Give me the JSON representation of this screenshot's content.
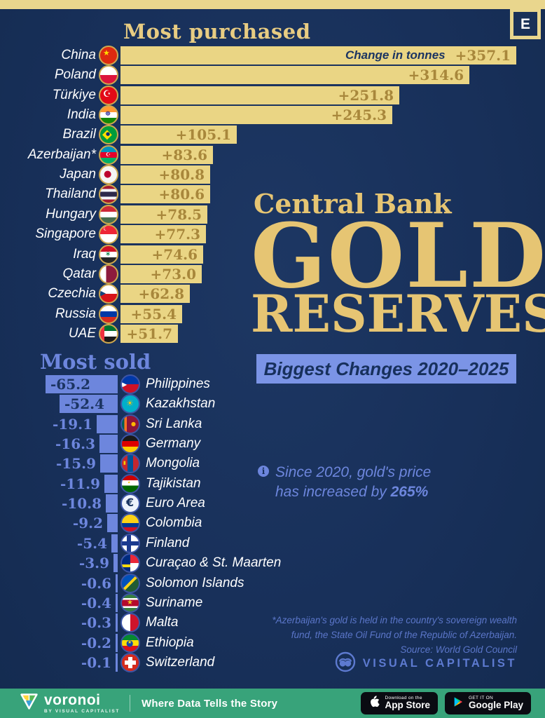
{
  "page": {
    "badge_letter": "E"
  },
  "icons": {
    "info_icon": "i"
  },
  "most_purchased": {
    "title": "Most purchased",
    "axis_note": "Change in tonnes",
    "rows": [
      {
        "country": "China",
        "flag": "china",
        "value": 357.1,
        "label": "+357.1"
      },
      {
        "country": "Poland",
        "flag": "poland",
        "value": 314.6,
        "label": "+314.6"
      },
      {
        "country": "Türkiye",
        "flag": "turkiye",
        "value": 251.8,
        "label": "+251.8"
      },
      {
        "country": "India",
        "flag": "india",
        "value": 245.3,
        "label": "+245.3"
      },
      {
        "country": "Brazil",
        "flag": "brazil",
        "value": 105.1,
        "label": "+105.1"
      },
      {
        "country": "Azerbaijan*",
        "flag": "azerbaijan",
        "value": 83.6,
        "label": "+83.6"
      },
      {
        "country": "Japan",
        "flag": "japan",
        "value": 80.8,
        "label": "+80.8"
      },
      {
        "country": "Thailand",
        "flag": "thailand",
        "value": 80.6,
        "label": "+80.6"
      },
      {
        "country": "Hungary",
        "flag": "hungary",
        "value": 78.5,
        "label": "+78.5"
      },
      {
        "country": "Singapore",
        "flag": "singapore",
        "value": 77.3,
        "label": "+77.3"
      },
      {
        "country": "Iraq",
        "flag": "iraq",
        "value": 74.6,
        "label": "+74.6"
      },
      {
        "country": "Qatar",
        "flag": "qatar",
        "value": 73.0,
        "label": "+73.0"
      },
      {
        "country": "Czechia",
        "flag": "czechia",
        "value": 62.8,
        "label": "+62.8"
      },
      {
        "country": "Russia",
        "flag": "russia",
        "value": 55.4,
        "label": "+55.4"
      },
      {
        "country": "UAE",
        "flag": "uae",
        "value": 51.7,
        "label": "+51.7"
      }
    ]
  },
  "most_sold": {
    "title": "Most sold",
    "rows": [
      {
        "country": "Philippines",
        "flag": "philippines",
        "value": 65.2,
        "label": "-65.2"
      },
      {
        "country": "Kazakhstan",
        "flag": "kazakhstan",
        "value": 52.4,
        "label": "-52.4"
      },
      {
        "country": "Sri Lanka",
        "flag": "sri-lanka",
        "value": 19.1,
        "label": "-19.1"
      },
      {
        "country": "Germany",
        "flag": "germany",
        "value": 16.3,
        "label": "-16.3"
      },
      {
        "country": "Mongolia",
        "flag": "mongolia",
        "value": 15.9,
        "label": "-15.9"
      },
      {
        "country": "Tajikistan",
        "flag": "tajikistan",
        "value": 11.9,
        "label": "-11.9"
      },
      {
        "country": "Euro Area",
        "flag": "euro-area",
        "value": 10.8,
        "label": "-10.8"
      },
      {
        "country": "Colombia",
        "flag": "colombia",
        "value": 9.2,
        "label": "-9.2"
      },
      {
        "country": "Finland",
        "flag": "finland",
        "value": 5.4,
        "label": "-5.4"
      },
      {
        "country": "Curaçao & St. Maarten",
        "flag": "curacao-st-maarten",
        "value": 3.9,
        "label": "-3.9"
      },
      {
        "country": "Solomon Islands",
        "flag": "solomon-islands",
        "value": 0.6,
        "label": "-0.6"
      },
      {
        "country": "Suriname",
        "flag": "suriname",
        "value": 0.4,
        "label": "-0.4"
      },
      {
        "country": "Malta",
        "flag": "malta",
        "value": 0.3,
        "label": "-0.3"
      },
      {
        "country": "Ethiopia",
        "flag": "ethiopia",
        "value": 0.2,
        "label": "-0.2"
      },
      {
        "country": "Switzerland",
        "flag": "switzerland",
        "value": 0.1,
        "label": "-0.1"
      }
    ]
  },
  "center": {
    "kicker": "Central Bank",
    "title": "GOLD",
    "title2": "RESERVES",
    "period_badge": "Biggest Changes 2020–2025",
    "note_line1": "Since 2020, gold's price",
    "note_line2": "has increased by ",
    "note_bold": "265%"
  },
  "footnote": {
    "line1": "*Azerbaijan's gold is held in the country's sovereign wealth",
    "line2": "fund, the State Oil Fund of the Republic of Azerbaijan.",
    "source": "Source: World Gold Council"
  },
  "branding": {
    "publisher": "VISUAL CAPITALIST"
  },
  "footer": {
    "brand": "voronoi",
    "brand_sub": "BY VISUAL CAPITALIST",
    "tagline": "Where Data Tells the Story",
    "appstore_line1": "Download on the",
    "appstore_line2": "App Store",
    "googleplay_line1": "GET IT ON",
    "googleplay_line2": "Google Play"
  },
  "colors": {
    "background_navy": "#1a3158",
    "gold_band": "#e9d68d",
    "bar_gold": "#ead584",
    "value_bronze": "#a8873b",
    "title_gold": "#e6c573",
    "accent_blue": "#6d86dd",
    "badge_blue": "#7b94e6",
    "navy_text": "#1b3462",
    "footer_green": "#38a37a",
    "text_white": "#ffffff"
  },
  "chart_data": [
    {
      "type": "bar",
      "title": "Most purchased",
      "orientation": "horizontal",
      "unit": "tonnes",
      "axis_note": "Change in tonnes",
      "categories": [
        "China",
        "Poland",
        "Türkiye",
        "India",
        "Brazil",
        "Azerbaijan",
        "Japan",
        "Thailand",
        "Hungary",
        "Singapore",
        "Iraq",
        "Qatar",
        "Czechia",
        "Russia",
        "UAE"
      ],
      "values": [
        357.1,
        314.6,
        251.8,
        245.3,
        105.1,
        83.6,
        80.8,
        80.6,
        78.5,
        77.3,
        74.6,
        73.0,
        62.8,
        55.4,
        51.7
      ],
      "xlim": [
        0,
        357.1
      ],
      "bar_color": "#ead584",
      "grid": false,
      "legend": false
    },
    {
      "type": "bar",
      "title": "Most sold",
      "orientation": "horizontal",
      "unit": "tonnes",
      "categories": [
        "Philippines",
        "Kazakhstan",
        "Sri Lanka",
        "Germany",
        "Mongolia",
        "Tajikistan",
        "Euro Area",
        "Colombia",
        "Finland",
        "Curaçao & St. Maarten",
        "Solomon Islands",
        "Suriname",
        "Malta",
        "Ethiopia",
        "Switzerland"
      ],
      "values": [
        -65.2,
        -52.4,
        -19.1,
        -16.3,
        -15.9,
        -11.9,
        -10.8,
        -9.2,
        -5.4,
        -3.9,
        -0.6,
        -0.4,
        -0.3,
        -0.2,
        -0.1
      ],
      "xlim": [
        -65.2,
        0
      ],
      "bar_color": "#6d86dd",
      "grid": false,
      "legend": false
    }
  ]
}
